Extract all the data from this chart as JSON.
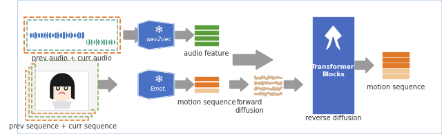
{
  "bg_color": "#ffffff",
  "border_color": "#b8cfe8",
  "labels": {
    "prev_audio": "prev audio + curr audio",
    "prev_sequence": "prev sequence + curr sequence",
    "audio_feature": "audio feature",
    "motion_sequence_mid": "motion sequence",
    "forward_diffusion": "forward\ndiffusion",
    "reverse_diffusion": "reverse diffusion",
    "transformer_blocks": "Transformer\nBlocks",
    "motion_sequence_out": "motion sequence",
    "wav2vec": "wav2vec",
    "emot": "Emot."
  },
  "colors": {
    "green_bar": "#5a9e3a",
    "orange_bar": "#e07828",
    "light_orange_bar": "#f0c898",
    "transformer_blue": "#4a6bbf",
    "encoder_blue": "#4a72c4",
    "arrow_gray": "#9a9a9a",
    "audio_border_orange": "#e07828",
    "audio_border_teal": "#60a898",
    "seq_border_orange": "#e07828",
    "seq_border_green": "#80b060",
    "audio_wave_blue": "#4878c0",
    "audio_wave_teal": "#50a080",
    "text_color": "#333333",
    "white": "#ffffff",
    "noisy_line": "#d8b898",
    "card_bg": "#f5f5f5"
  }
}
